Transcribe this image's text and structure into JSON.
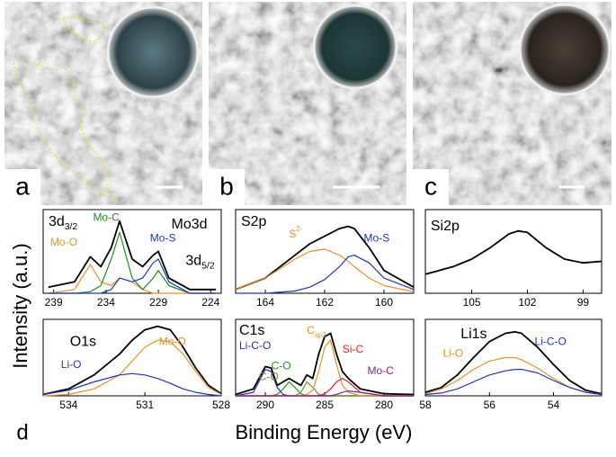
{
  "images": [
    {
      "label": "a"
    },
    {
      "label": "b"
    },
    {
      "label": "c"
    }
  ],
  "panel_d": "d",
  "xlabel": "Binding Energy (eV)",
  "ylabel": "Intensity (a.u.)",
  "chart_data": [
    {
      "type": "line",
      "title": "Mo3d",
      "xlim": [
        240,
        223
      ],
      "xticks": [
        239,
        234,
        229,
        224
      ],
      "ylim": [
        0,
        1.1
      ],
      "annotations": [
        {
          "text": "3d",
          "sub": "3/2"
        },
        {
          "text": "3d",
          "sub": "5/2"
        }
      ],
      "x": [
        239.5,
        237,
        235.5,
        234.5,
        233.5,
        232.7,
        231.5,
        230.5,
        229.5,
        229,
        228,
        226,
        223.5
      ],
      "series": [
        {
          "color": "#000000",
          "values": [
            0.08,
            0.15,
            0.48,
            0.35,
            0.6,
            0.95,
            0.45,
            0.35,
            0.5,
            0.55,
            0.2,
            0.05,
            0.05
          ]
        },
        {
          "name": "Mo-O",
          "color": "#e8912a",
          "values": [
            0,
            0.05,
            0.38,
            0.15,
            0.1,
            0.2,
            0.15,
            0.05,
            0,
            0,
            0,
            0,
            0
          ]
        },
        {
          "name": "Mo-C",
          "color": "#1f8f1f",
          "values": [
            0,
            0,
            0.02,
            0.1,
            0.45,
            0.8,
            0.2,
            0.05,
            0.2,
            0.3,
            0.1,
            0,
            0
          ]
        },
        {
          "name": "Mo-S",
          "color": "#2233bb",
          "values": [
            0,
            0,
            0,
            0,
            0.05,
            0.2,
            0.15,
            0.2,
            0.4,
            0.45,
            0.15,
            0,
            0
          ]
        }
      ]
    },
    {
      "type": "line",
      "title": "S2p",
      "xlim": [
        165,
        159
      ],
      "xticks": [
        164,
        162,
        160
      ],
      "ylim": [
        0,
        1.1
      ],
      "x": [
        165,
        164,
        163,
        162.5,
        162,
        161.5,
        161.2,
        161,
        160.5,
        160,
        159
      ],
      "series": [
        {
          "color": "#000000",
          "values": [
            0.05,
            0.2,
            0.5,
            0.65,
            0.75,
            0.85,
            0.88,
            0.85,
            0.6,
            0.3,
            0.08
          ]
        },
        {
          "name": "S",
          "sup": "2-",
          "color": "#e8912a",
          "values": [
            0.05,
            0.2,
            0.45,
            0.55,
            0.58,
            0.5,
            0.42,
            0.35,
            0.2,
            0.1,
            0.02
          ]
        },
        {
          "name": "Mo-S",
          "color": "#2233bb",
          "values": [
            0,
            0,
            0.03,
            0.08,
            0.18,
            0.35,
            0.48,
            0.5,
            0.4,
            0.2,
            0.05
          ]
        }
      ]
    },
    {
      "type": "line",
      "title": "Si2p",
      "xlim": [
        107.5,
        98
      ],
      "xticks": [
        105,
        102,
        99
      ],
      "ylim": [
        0,
        1.1
      ],
      "x": [
        107.5,
        106,
        105,
        104,
        103,
        102.5,
        102,
        101,
        100,
        99,
        98
      ],
      "series": [
        {
          "color": "#000000",
          "values": [
            0.25,
            0.35,
            0.45,
            0.6,
            0.78,
            0.82,
            0.8,
            0.6,
            0.45,
            0.4,
            0.42
          ]
        }
      ]
    },
    {
      "type": "line",
      "title": "O1s",
      "xlim": [
        535,
        528
      ],
      "xticks": [
        534,
        531,
        528
      ],
      "ylim": [
        0,
        1.1
      ],
      "x": [
        535,
        534,
        533,
        532,
        531.5,
        531,
        530.5,
        530,
        529.5,
        529,
        528.5,
        528
      ],
      "series": [
        {
          "color": "#000000",
          "values": [
            0.02,
            0.1,
            0.3,
            0.6,
            0.8,
            0.95,
            1.0,
            0.95,
            0.7,
            0.4,
            0.15,
            0.03
          ]
        },
        {
          "name": "Mo-O",
          "color": "#e8912a",
          "values": [
            0,
            0.02,
            0.1,
            0.3,
            0.5,
            0.7,
            0.8,
            0.78,
            0.6,
            0.35,
            0.12,
            0.02
          ]
        },
        {
          "name": "Li-O",
          "color": "#2233bb",
          "values": [
            0.02,
            0.08,
            0.2,
            0.3,
            0.32,
            0.3,
            0.25,
            0.18,
            0.1,
            0.05,
            0.02,
            0
          ]
        }
      ]
    },
    {
      "type": "line",
      "title": "C1s",
      "xlim": [
        292.5,
        277.5
      ],
      "xticks": [
        290,
        285,
        280
      ],
      "ylim": [
        0,
        1.1
      ],
      "x": [
        292.5,
        291,
        290,
        289.5,
        289,
        288.5,
        288,
        287.5,
        287,
        286.5,
        286,
        285.5,
        285,
        284.5,
        284,
        283.5,
        283,
        282,
        280,
        277.5
      ],
      "series": [
        {
          "color": "#000000",
          "values": [
            0.02,
            0.1,
            0.42,
            0.4,
            0.15,
            0.2,
            0.25,
            0.2,
            0.15,
            0.3,
            0.25,
            0.6,
            0.85,
            0.9,
            0.6,
            0.35,
            0.25,
            0.1,
            0.03,
            0.02
          ]
        },
        {
          "name": "Li-C-O",
          "color": "#2233bb",
          "values": [
            0,
            0.05,
            0.38,
            0.35,
            0.12,
            0.02,
            0,
            0,
            0,
            0,
            0,
            0,
            0,
            0,
            0,
            0,
            0,
            0,
            0,
            0
          ]
        },
        {
          "name": "C-O",
          "color": "#1f8f1f",
          "values": [
            0,
            0,
            0,
            0,
            0.02,
            0.1,
            0.2,
            0.12,
            0.03,
            0,
            0,
            0,
            0,
            0,
            0,
            0,
            0,
            0,
            0,
            0
          ]
        },
        {
          "name": "C-O",
          "color": "#6b8e23",
          "values": [
            0,
            0,
            0,
            0,
            0,
            0,
            0,
            0,
            0.05,
            0.2,
            0.12,
            0.02,
            0,
            0,
            0,
            0,
            0,
            0,
            0,
            0
          ]
        },
        {
          "name": "C",
          "sub": "sp2",
          "color": "#e8912a",
          "values": [
            0,
            0,
            0,
            0,
            0,
            0,
            0,
            0,
            0,
            0.02,
            0.08,
            0.35,
            0.7,
            0.8,
            0.45,
            0.15,
            0.05,
            0,
            0,
            0
          ]
        },
        {
          "name": "Si-C",
          "color": "#dd2222",
          "values": [
            0,
            0,
            0,
            0,
            0,
            0,
            0,
            0,
            0,
            0,
            0,
            0,
            0.03,
            0.1,
            0.2,
            0.25,
            0.2,
            0.05,
            0,
            0
          ]
        },
        {
          "name": "Mo-C",
          "color": "#8b1f8b",
          "values": [
            0,
            0,
            0,
            0,
            0,
            0,
            0,
            0,
            0,
            0,
            0,
            0,
            0,
            0,
            0.02,
            0.05,
            0.07,
            0.05,
            0,
            0
          ]
        }
      ]
    },
    {
      "type": "line",
      "title": "Li1s",
      "xlim": [
        58,
        52.5
      ],
      "xticks": [
        58,
        56,
        54
      ],
      "ylim": [
        0,
        1.1
      ],
      "x": [
        58,
        57.5,
        57,
        56.5,
        56,
        55.5,
        55.2,
        55,
        54.5,
        54,
        53.5,
        53,
        52.5
      ],
      "series": [
        {
          "color": "#000000",
          "values": [
            0.05,
            0.12,
            0.3,
            0.55,
            0.78,
            0.9,
            0.92,
            0.9,
            0.7,
            0.45,
            0.22,
            0.08,
            0.03
          ]
        },
        {
          "name": "Li-O",
          "color": "#e8912a",
          "values": [
            0.03,
            0.1,
            0.22,
            0.38,
            0.5,
            0.55,
            0.55,
            0.52,
            0.4,
            0.25,
            0.12,
            0.05,
            0.02
          ]
        },
        {
          "name": "Li-C-O",
          "color": "#2233bb",
          "values": [
            0.02,
            0.04,
            0.1,
            0.2,
            0.3,
            0.36,
            0.38,
            0.38,
            0.33,
            0.22,
            0.12,
            0.05,
            0.02
          ]
        }
      ]
    }
  ]
}
